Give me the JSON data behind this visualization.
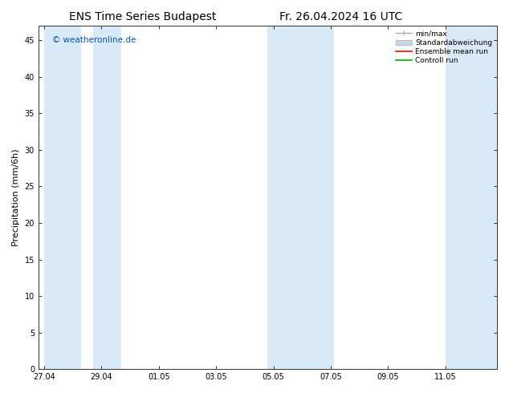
{
  "title_left": "ENS Time Series Budapest",
  "title_right": "Fr. 26.04.2024 16 UTC",
  "ylabel": "Precipitation (mm/6h)",
  "ylim": [
    0,
    47
  ],
  "yticks": [
    0,
    5,
    10,
    15,
    20,
    25,
    30,
    35,
    40,
    45
  ],
  "xtick_labels": [
    "27.04",
    "29.04",
    "01.05",
    "03.05",
    "05.05",
    "07.05",
    "09.05",
    "11.05"
  ],
  "xtick_pos": [
    0,
    2,
    4,
    6,
    8,
    10,
    12,
    14
  ],
  "xlim": [
    -0.2,
    15.8
  ],
  "watermark": "© weatheronline.de",
  "watermark_color": "#0055cc",
  "bg_color": "#ffffff",
  "plot_bg_color": "#ffffff",
  "shaded_band_color": "#d8eaf8",
  "band_positions": [
    [
      0.0,
      1.3
    ],
    [
      1.7,
      2.7
    ],
    [
      7.8,
      9.3
    ],
    [
      9.3,
      10.1
    ],
    [
      14.0,
      15.2
    ],
    [
      15.2,
      15.8
    ]
  ],
  "legend_labels": [
    "min/max",
    "Standardabweichung",
    "Ensemble mean run",
    "Controll run"
  ],
  "minmax_color": "#aaaaaa",
  "std_color": "#c8d8e8",
  "ens_color": "#ff0000",
  "ctrl_color": "#00aa00",
  "tick_fontsize": 7,
  "label_fontsize": 8,
  "title_fontsize": 10
}
